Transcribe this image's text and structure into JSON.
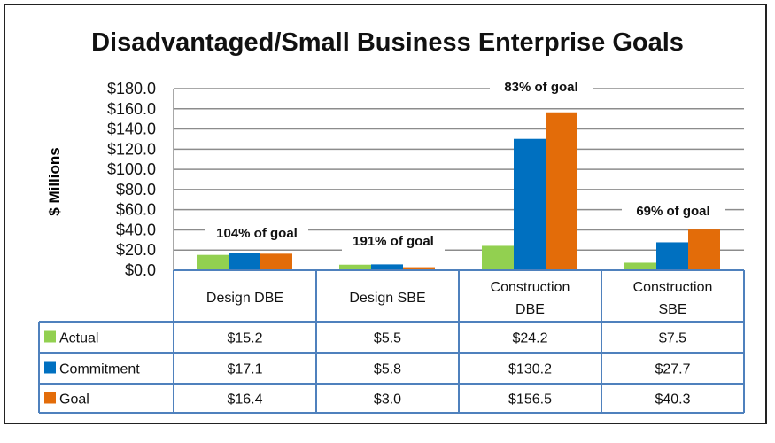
{
  "chart_data": {
    "type": "bar",
    "title": "Disadvantaged/Small Business Enterprise Goals",
    "ylabel": "$ Millions",
    "ylim": [
      0,
      180
    ],
    "yticks": [
      "$0.0",
      "$20.0",
      "$40.0",
      "$60.0",
      "$80.0",
      "$100.0",
      "$120.0",
      "$140.0",
      "$160.0",
      "$180.0"
    ],
    "grid": true,
    "legend": "data-table",
    "categories": [
      [
        "Design DBE"
      ],
      [
        "Design SBE"
      ],
      [
        "Construction",
        "DBE"
      ],
      [
        "Construction",
        "SBE"
      ]
    ],
    "series": [
      {
        "name": "Actual",
        "color": "#92D050",
        "values": [
          15.2,
          5.5,
          24.2,
          7.5
        ],
        "labels": [
          "$15.2",
          "$5.5",
          "$24.2",
          "$7.5"
        ]
      },
      {
        "name": "Commitment",
        "color": "#0070C0",
        "values": [
          17.1,
          5.8,
          130.2,
          27.7
        ],
        "labels": [
          "$17.1",
          "$5.8",
          "$130.2",
          "$27.7"
        ]
      },
      {
        "name": "Goal",
        "color": "#E36C09",
        "values": [
          16.4,
          3.0,
          156.5,
          40.3
        ],
        "labels": [
          "$16.4",
          "$3.0",
          "$156.5",
          "$40.3"
        ]
      }
    ],
    "annotations": [
      "104% of goal",
      "191% of goal",
      "83% of goal",
      "69% of goal"
    ]
  }
}
